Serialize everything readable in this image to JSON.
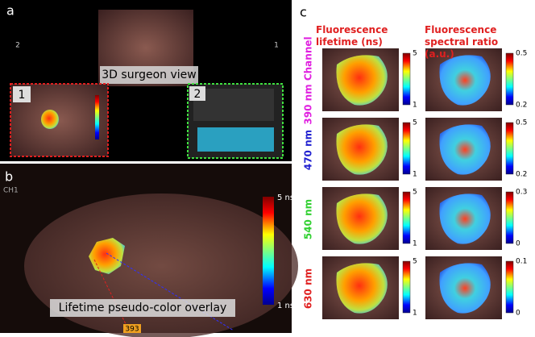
{
  "panel_a": {
    "label": "a",
    "caption": "3D surgeon view",
    "markers": [
      "2",
      "1"
    ],
    "windows": [
      "1",
      "2"
    ]
  },
  "panel_b": {
    "label": "b",
    "channel": "CH1",
    "caption": "Lifetime pseudo-color overlay",
    "scale_max": "5 ns",
    "scale_min": "1 ns",
    "readout": "393"
  },
  "panel_c": {
    "label": "c",
    "columns": [
      "Fluorescence lifetime (ns)",
      "Fluorescence spectral ratio (a.u.)"
    ],
    "rows": [
      {
        "label": "390 nm Channel",
        "color": "#e020e0",
        "scales": [
          [
            "5",
            "1"
          ],
          [
            "0.5",
            "0.2"
          ]
        ]
      },
      {
        "label": "470 nm",
        "color": "#2020d0",
        "scales": [
          [
            "5",
            "1"
          ],
          [
            "0.5",
            "0.2"
          ]
        ]
      },
      {
        "label": "540 nm",
        "color": "#30d030",
        "scales": [
          [
            "5",
            "1"
          ],
          [
            "0.3",
            "0"
          ]
        ]
      },
      {
        "label": "630 nm",
        "color": "#e02020",
        "scales": [
          [
            "5",
            "1"
          ],
          [
            "0.1",
            "0"
          ]
        ]
      }
    ]
  }
}
